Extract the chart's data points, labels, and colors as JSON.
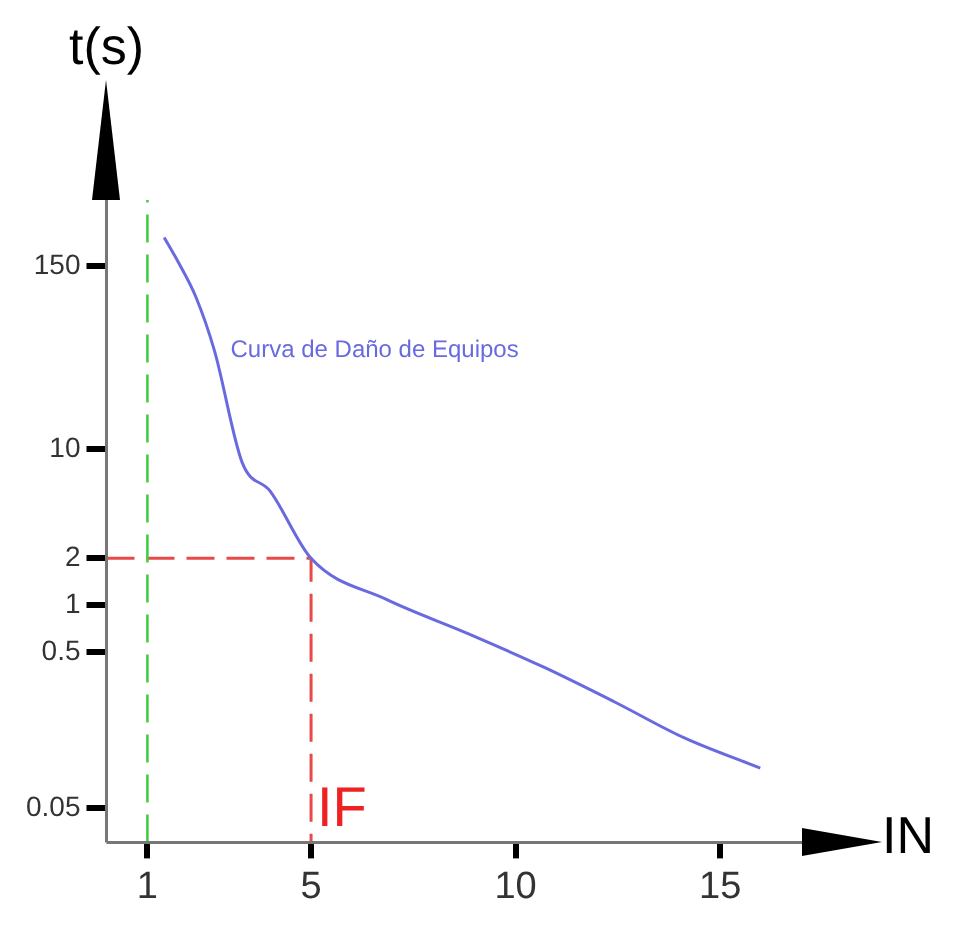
{
  "chart_data": {
    "type": "line",
    "xlabel": "IN",
    "ylabel": "t(s)",
    "xlim": [
      0,
      17
    ],
    "xticks": [
      1,
      5,
      10,
      15
    ],
    "ylim": [
      0.03,
      400
    ],
    "yticks": [
      0.05,
      0.5,
      1,
      2,
      10,
      150
    ],
    "log": "y",
    "grid": false,
    "legend": false,
    "marker": "none",
    "series": [
      {
        "name": "Curva de Daño de Equipos",
        "color": "#6a6ae0",
        "x": [
          1.41,
          1.73,
          2.18,
          2.64,
          3.32,
          4.0,
          5,
          6.84,
          8.82,
          10.69,
          12.41,
          14.14,
          15.98
        ],
        "values": [
          230,
          164,
          96,
          43,
          8.2,
          5.4,
          2,
          1.09,
          0.66,
          0.4,
          0.24,
          0.14,
          0.09
        ]
      },
      {
        "color": "#e84a4a",
        "line_style": "dashed",
        "x": [
          0,
          5,
          5
        ],
        "values": [
          2,
          2,
          0.03
        ]
      }
    ],
    "ref_lines": [
      {
        "axis": "x",
        "value": 1,
        "color": "#44cc44",
        "line_style": "dashed"
      }
    ],
    "annotations": [
      {
        "text": "IF",
        "x": 5,
        "y": 0.03
      }
    ]
  }
}
